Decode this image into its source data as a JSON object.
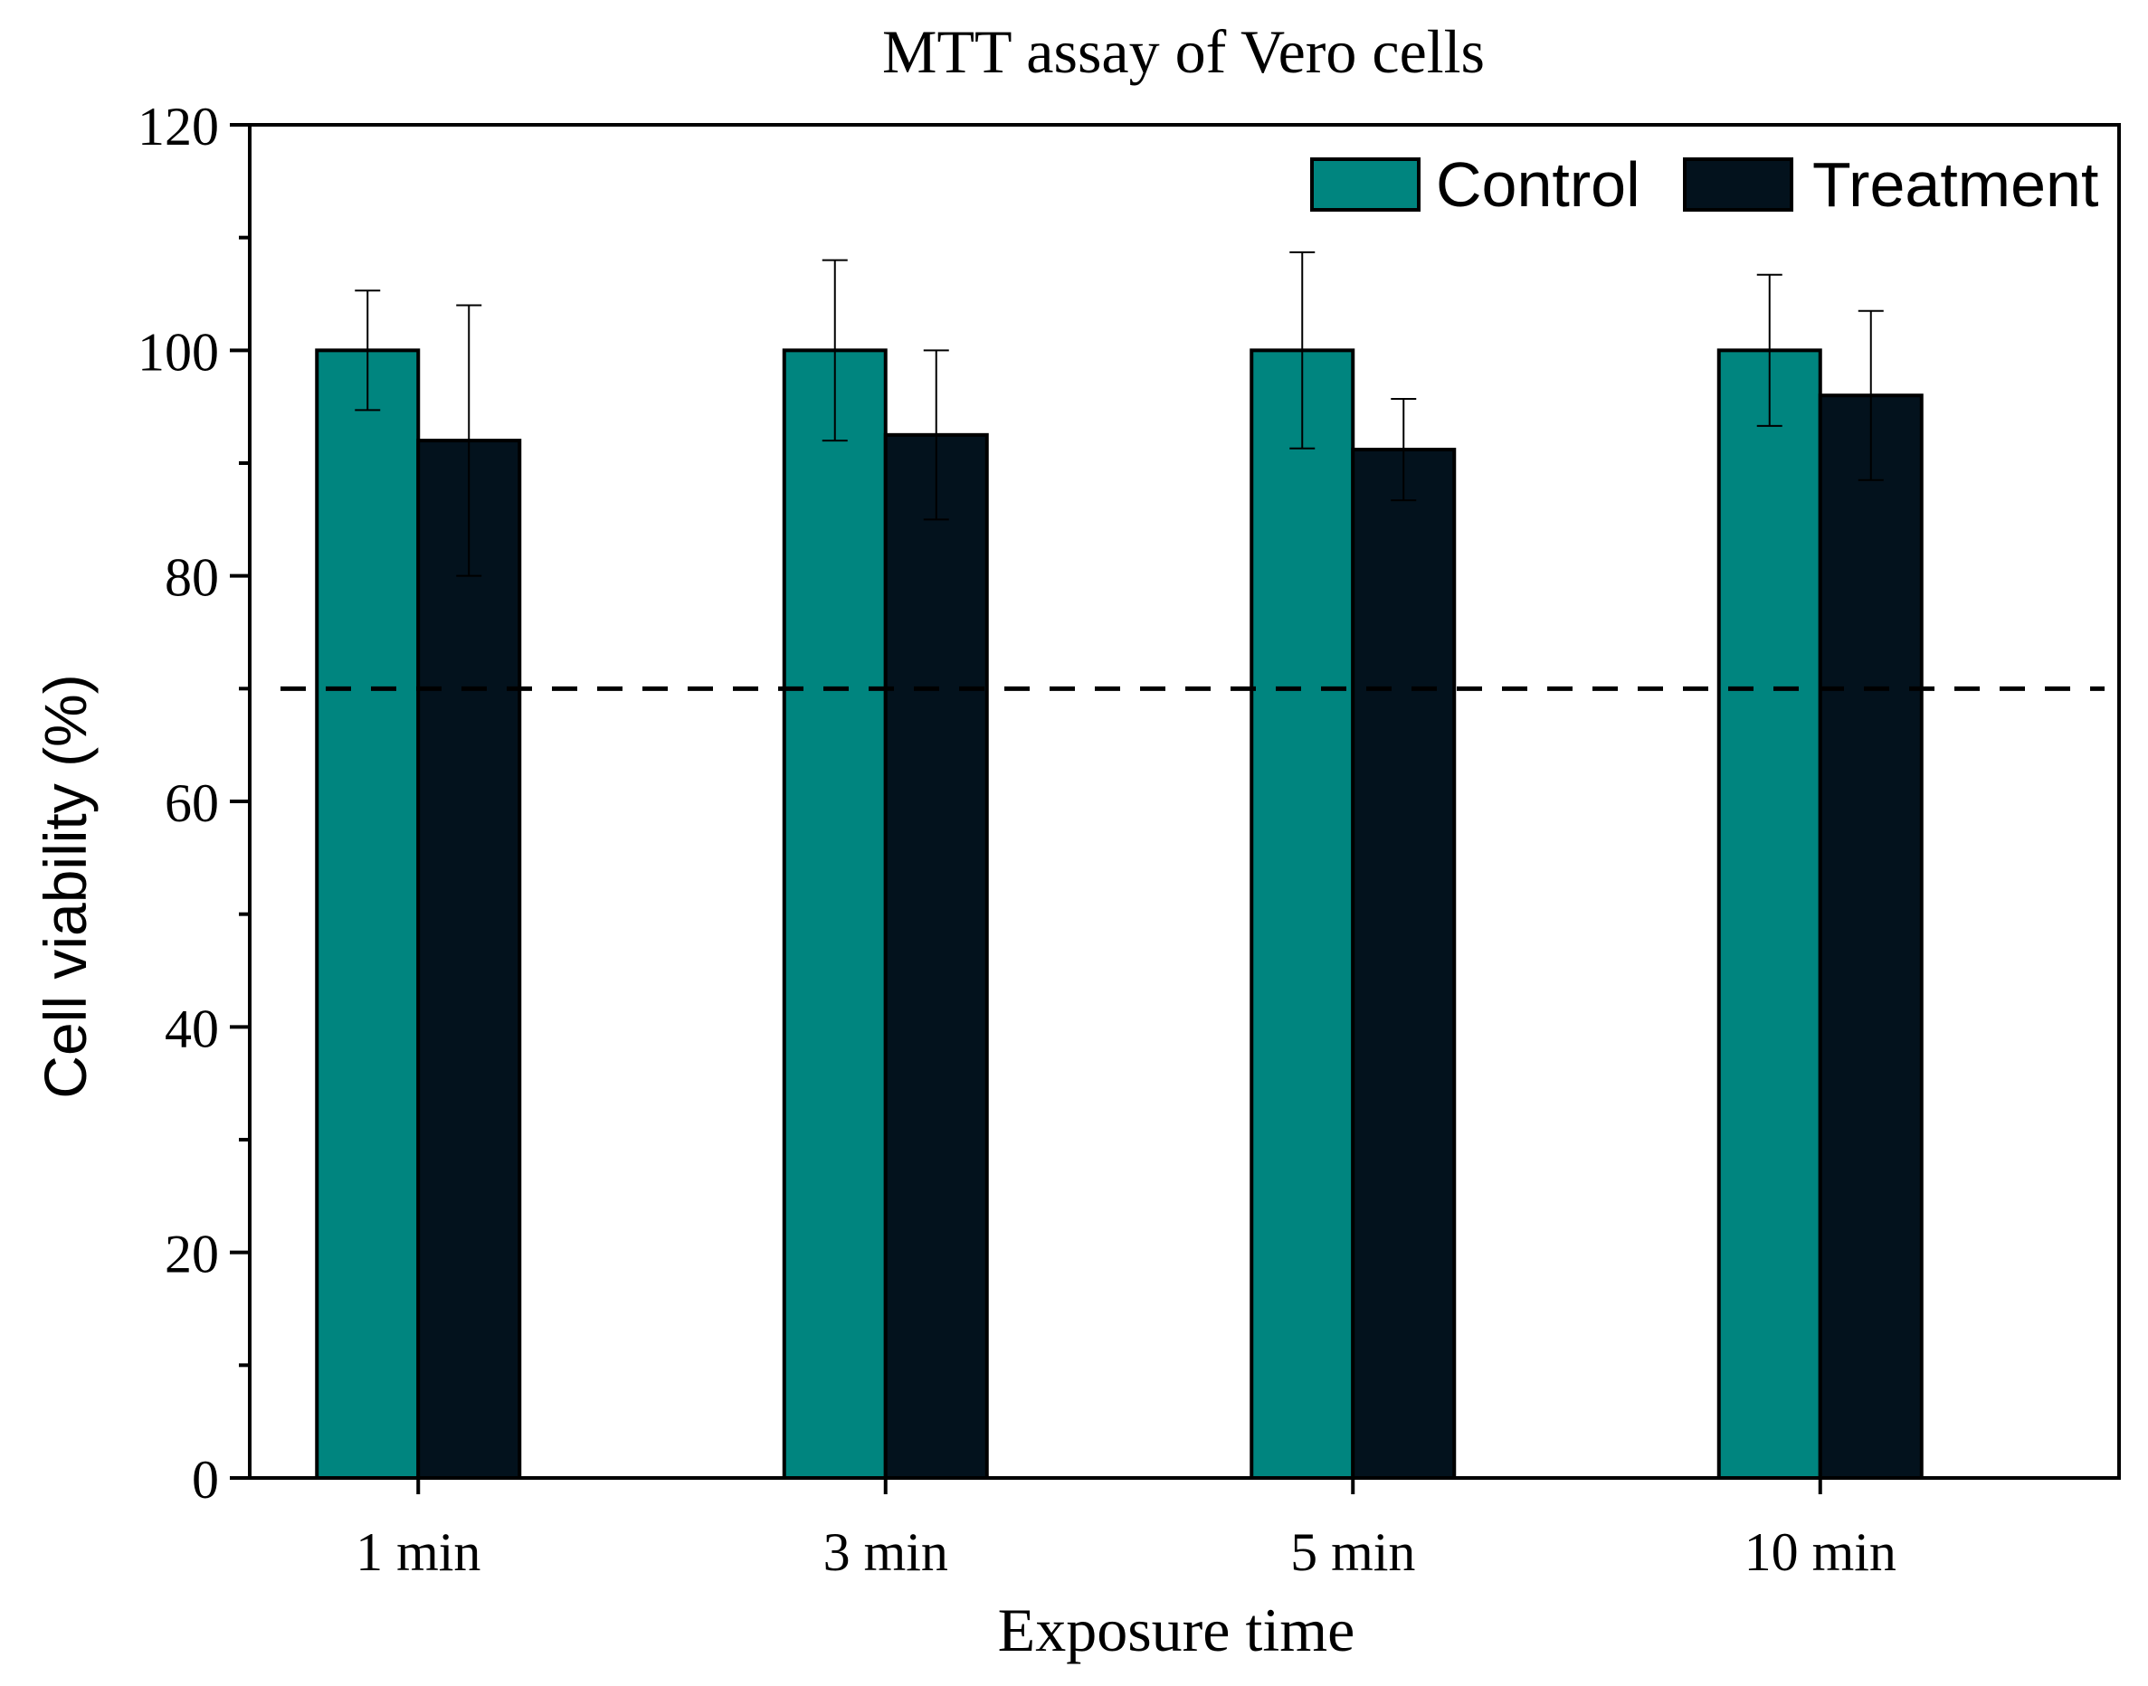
{
  "chart_data": {
    "type": "bar",
    "title": "MTT assay of Vero cells",
    "xlabel": "Exposure time",
    "ylabel": "Cell viability (%)",
    "ylim": [
      0,
      120
    ],
    "yticks": [
      0,
      20,
      40,
      60,
      80,
      100,
      120
    ],
    "ytick_labels": [
      "0",
      "20",
      "40",
      "60",
      "80",
      "100",
      "120"
    ],
    "categories": [
      "1 min",
      "3 min",
      "5 min",
      "10 min"
    ],
    "series": [
      {
        "name": "Control",
        "color": "#00857f",
        "values": [
          100,
          100,
          100,
          100
        ],
        "errors": [
          5.3,
          8.0,
          8.7,
          6.7
        ]
      },
      {
        "name": "Treatment",
        "color": "#03121d",
        "values": [
          92,
          92.5,
          91.2,
          96
        ],
        "errors": [
          12.0,
          7.5,
          4.5,
          7.5
        ]
      }
    ],
    "reference_line": {
      "value": 70,
      "style": "dashed"
    },
    "legend_position": "top-right",
    "grid": false
  }
}
